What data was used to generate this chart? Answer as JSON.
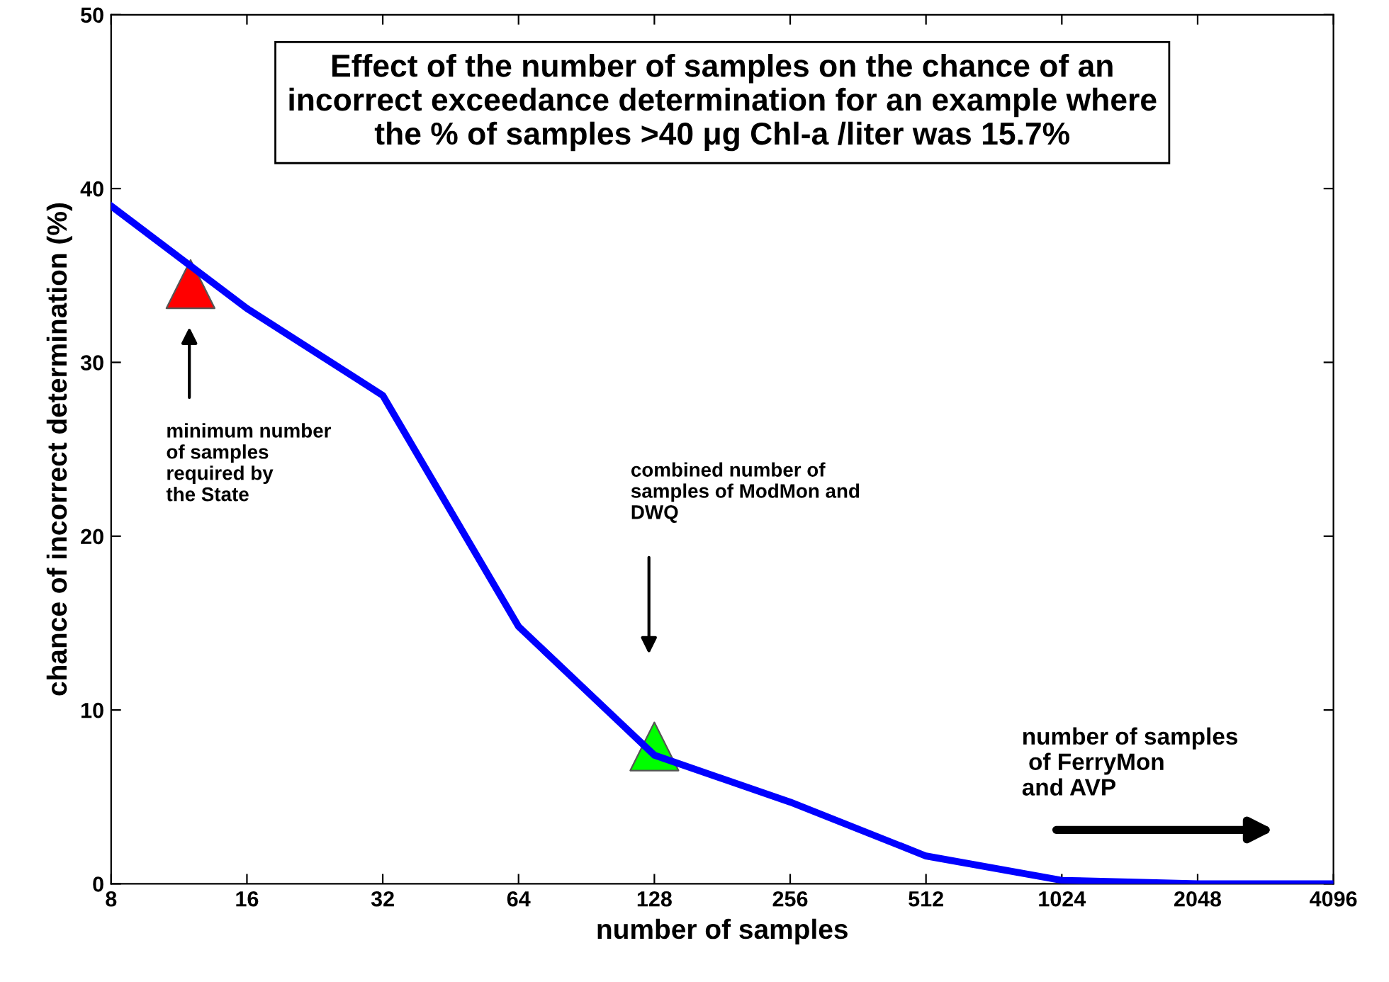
{
  "chart_data": {
    "type": "line",
    "title": "Effect of the number of samples on the chance of an\nincorrect exceedance determination for an example where\nthe % of samples >40 μg Chl-a /liter was 15.7%",
    "xlabel": "number of samples",
    "ylabel": "chance of incorrect determination (%)",
    "series": [
      {
        "color": "#0000ff",
        "x": [
          8,
          16,
          32,
          64,
          128,
          256,
          512,
          1024,
          2048,
          4096
        ],
        "values": [
          39.0,
          33.1,
          28.1,
          14.8,
          7.4,
          4.7,
          1.6,
          0.2,
          0,
          0
        ]
      },
      {
        "type": "scatter",
        "marker": "triangle",
        "color": "#ff0000",
        "x": [
          12
        ],
        "values": [
          34.5
        ]
      },
      {
        "type": "scatter",
        "marker": "triangle",
        "color": "#00ff00",
        "x": [
          128
        ],
        "values": [
          7.9
        ]
      }
    ],
    "annotations": [
      "minimum number\nof samples\nrequired by\nthe State",
      "combined number of\nsamples of ModMon and\nDWQ",
      "number of samples\n of FerryMon\nand AVP"
    ],
    "log": "x",
    "xlim": [
      8,
      4096
    ],
    "ylim": [
      0,
      50
    ],
    "xticks": [
      8,
      16,
      32,
      64,
      128,
      256,
      512,
      1024,
      2048,
      4096
    ],
    "yticks": [
      0,
      10,
      20,
      30,
      40,
      50
    ],
    "grid": false,
    "legend": false,
    "marker": "none",
    "line_style": "solid"
  }
}
